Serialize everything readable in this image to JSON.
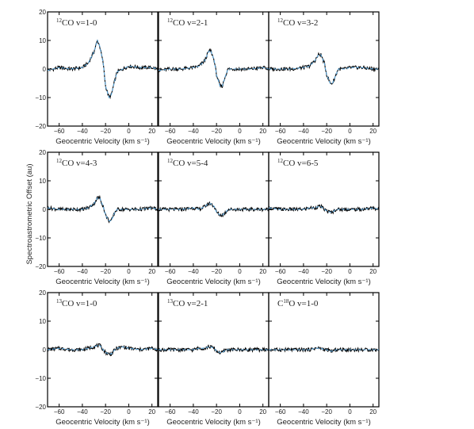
{
  "figure": {
    "ylabel": "Spectroastrometric Offset (au)",
    "xlabel": "Geocentric Velocity (km s⁻¹)",
    "xticks": [
      -60,
      -40,
      -20,
      0,
      20
    ],
    "yticks": [
      -20,
      -10,
      0,
      10,
      20
    ],
    "xlim": [
      -70,
      25
    ],
    "ylim": [
      -20,
      20
    ],
    "data_color": "#000000",
    "model_color": "#5aa6dc"
  },
  "chart_data": [
    {
      "type": "line",
      "title_sup": "12",
      "title_rest": "CO v=1-0",
      "xlim": [
        -70,
        25
      ],
      "ylim": [
        -20,
        20
      ],
      "series": [
        {
          "x": [
            -70,
            -60,
            -50,
            -40,
            -35,
            -30,
            -27,
            -25,
            -22,
            -20,
            -17,
            -15,
            -12,
            -10,
            -5,
            0,
            10,
            20,
            25
          ],
          "values": [
            -0.5,
            0.5,
            0,
            0.5,
            2,
            6,
            10,
            8,
            2,
            -6,
            -10,
            -9,
            -4,
            -1,
            0,
            1,
            0.5,
            0.5,
            0
          ]
        }
      ]
    },
    {
      "type": "line",
      "title_sup": "12",
      "title_rest": "CO v=2-1",
      "xlim": [
        -70,
        25
      ],
      "ylim": [
        -20,
        20
      ],
      "series": [
        {
          "x": [
            -70,
            -60,
            -50,
            -40,
            -35,
            -30,
            -27,
            -25,
            -22,
            -20,
            -17,
            -15,
            -12,
            -10,
            -5,
            0,
            10,
            20,
            25
          ],
          "values": [
            -0.5,
            0,
            0,
            0.5,
            1,
            3,
            6,
            6.5,
            3,
            -2,
            -6,
            -6,
            -2,
            0,
            0,
            0,
            0,
            0.5,
            0
          ]
        }
      ]
    },
    {
      "type": "line",
      "title_sup": "12",
      "title_rest": "CO v=3-2",
      "xlim": [
        -70,
        25
      ],
      "ylim": [
        -20,
        20
      ],
      "series": [
        {
          "x": [
            -70,
            -60,
            -50,
            -40,
            -35,
            -30,
            -27,
            -25,
            -22,
            -20,
            -17,
            -15,
            -12,
            -10,
            -5,
            0,
            10,
            20,
            25
          ],
          "values": [
            0,
            0,
            0,
            0.5,
            1,
            3,
            5,
            5,
            2,
            -2,
            -5,
            -5,
            -2,
            0,
            0,
            0.5,
            0.5,
            0,
            0
          ]
        }
      ]
    },
    {
      "type": "line",
      "title_sup": "12",
      "title_rest": "CO v=4-3",
      "xlim": [
        -70,
        25
      ],
      "ylim": [
        -20,
        20
      ],
      "series": [
        {
          "x": [
            -70,
            -60,
            -50,
            -40,
            -35,
            -30,
            -27,
            -25,
            -22,
            -20,
            -17,
            -15,
            -12,
            -10,
            -5,
            0,
            10,
            20,
            25
          ],
          "values": [
            0.5,
            0,
            0,
            0,
            0.5,
            2,
            4,
            4,
            1,
            -2,
            -4,
            -4,
            -1,
            0,
            0,
            0,
            0,
            0.5,
            0
          ]
        }
      ]
    },
    {
      "type": "line",
      "title_sup": "12",
      "title_rest": "CO v=5-4",
      "xlim": [
        -70,
        25
      ],
      "ylim": [
        -20,
        20
      ],
      "series": [
        {
          "x": [
            -70,
            -60,
            -50,
            -40,
            -35,
            -30,
            -27,
            -25,
            -22,
            -20,
            -17,
            -15,
            -12,
            -10,
            -5,
            0,
            10,
            20,
            25
          ],
          "values": [
            0,
            0,
            0,
            0.5,
            0,
            1,
            2,
            2,
            1,
            -1,
            -2,
            -2,
            -1,
            0,
            0,
            0,
            0,
            0,
            0
          ]
        }
      ]
    },
    {
      "type": "line",
      "title_sup": "12",
      "title_rest": "CO v=6-5",
      "xlim": [
        -70,
        25
      ],
      "ylim": [
        -20,
        20
      ],
      "series": [
        {
          "x": [
            -70,
            -60,
            -50,
            -40,
            -35,
            -30,
            -27,
            -25,
            -22,
            -20,
            -17,
            -15,
            -12,
            -10,
            -5,
            0,
            10,
            20,
            25
          ],
          "values": [
            0.5,
            0,
            0,
            0,
            0.5,
            0.5,
            1,
            1,
            0,
            -0.5,
            -1,
            -1,
            0,
            0,
            0,
            0,
            0,
            0.5,
            0
          ]
        }
      ]
    },
    {
      "type": "line",
      "title_sup": "13",
      "title_rest": "CO v=1-0",
      "xlim": [
        -70,
        25
      ],
      "ylim": [
        -20,
        20
      ],
      "series": [
        {
          "x": [
            -70,
            -60,
            -50,
            -40,
            -35,
            -30,
            -27,
            -25,
            -22,
            -20,
            -17,
            -15,
            -12,
            -10,
            -5,
            0,
            10,
            20,
            25
          ],
          "values": [
            0,
            0.5,
            0,
            0,
            0.5,
            1,
            1.5,
            1.5,
            0,
            -1,
            -1.5,
            -1.5,
            0,
            0.5,
            1,
            0.5,
            0,
            0.5,
            0
          ]
        }
      ]
    },
    {
      "type": "line",
      "title_sup": "13",
      "title_rest": "CO v=2-1",
      "xlim": [
        -70,
        25
      ],
      "ylim": [
        -20,
        20
      ],
      "series": [
        {
          "x": [
            -70,
            -60,
            -50,
            -40,
            -35,
            -30,
            -27,
            -25,
            -22,
            -20,
            -17,
            -15,
            -12,
            -10,
            -5,
            0,
            10,
            20,
            25
          ],
          "values": [
            0,
            0,
            0,
            0,
            0.5,
            0.5,
            1,
            1,
            0.5,
            -0.5,
            -1,
            -1,
            0,
            0,
            0,
            0,
            0,
            0,
            0
          ]
        }
      ]
    },
    {
      "type": "line",
      "title_pre": "C",
      "title_sup": "18",
      "title_rest": "O v=1-0",
      "xlim": [
        -70,
        25
      ],
      "ylim": [
        -20,
        20
      ],
      "series": [
        {
          "x": [
            -70,
            -60,
            -50,
            -40,
            -35,
            -30,
            -27,
            -25,
            -22,
            -20,
            -17,
            -15,
            -12,
            -10,
            -5,
            0,
            10,
            20,
            25
          ],
          "values": [
            0,
            0,
            0,
            0,
            0,
            0.5,
            0.5,
            0.5,
            0,
            0,
            -0.5,
            -0.5,
            0,
            0,
            0,
            0,
            0,
            0,
            0
          ]
        }
      ]
    }
  ]
}
